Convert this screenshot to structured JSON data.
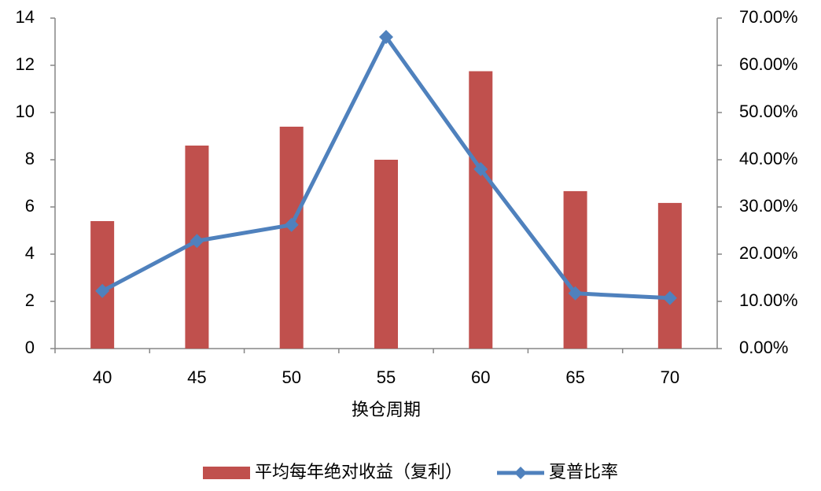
{
  "chart_data": {
    "type": "bar",
    "x_label": "换仓周期",
    "categories": [
      "40",
      "45",
      "50",
      "55",
      "60",
      "65",
      "70"
    ],
    "series": [
      {
        "name": "平均每年绝对收益（复利）",
        "type": "bar",
        "color": "#c0504d",
        "values": [
          5.4,
          8.6,
          9.4,
          8.0,
          11.75,
          6.67,
          6.17
        ]
      },
      {
        "name": "夏普比率",
        "type": "line",
        "axis": "y2",
        "color": "#4f81bd",
        "values": [
          12.2,
          22.8,
          26.2,
          66,
          38,
          11.7,
          10.7
        ]
      }
    ],
    "ylim": [
      0,
      14
    ],
    "yticks": [
      0,
      2,
      4,
      6,
      8,
      10,
      12,
      14
    ],
    "y2lim": [
      0,
      70
    ],
    "y2ticks": [
      {
        "value": 0,
        "label": "0.00%"
      },
      {
        "value": 10,
        "label": "10.00%"
      },
      {
        "value": 20,
        "label": "20.00%"
      },
      {
        "value": 30,
        "label": "30.00%"
      },
      {
        "value": 40,
        "label": "40.00%"
      },
      {
        "value": 50,
        "label": "50.00%"
      },
      {
        "value": 60,
        "label": "60.00%"
      },
      {
        "value": 70,
        "label": "70.00%"
      }
    ],
    "legend": "bottom"
  }
}
